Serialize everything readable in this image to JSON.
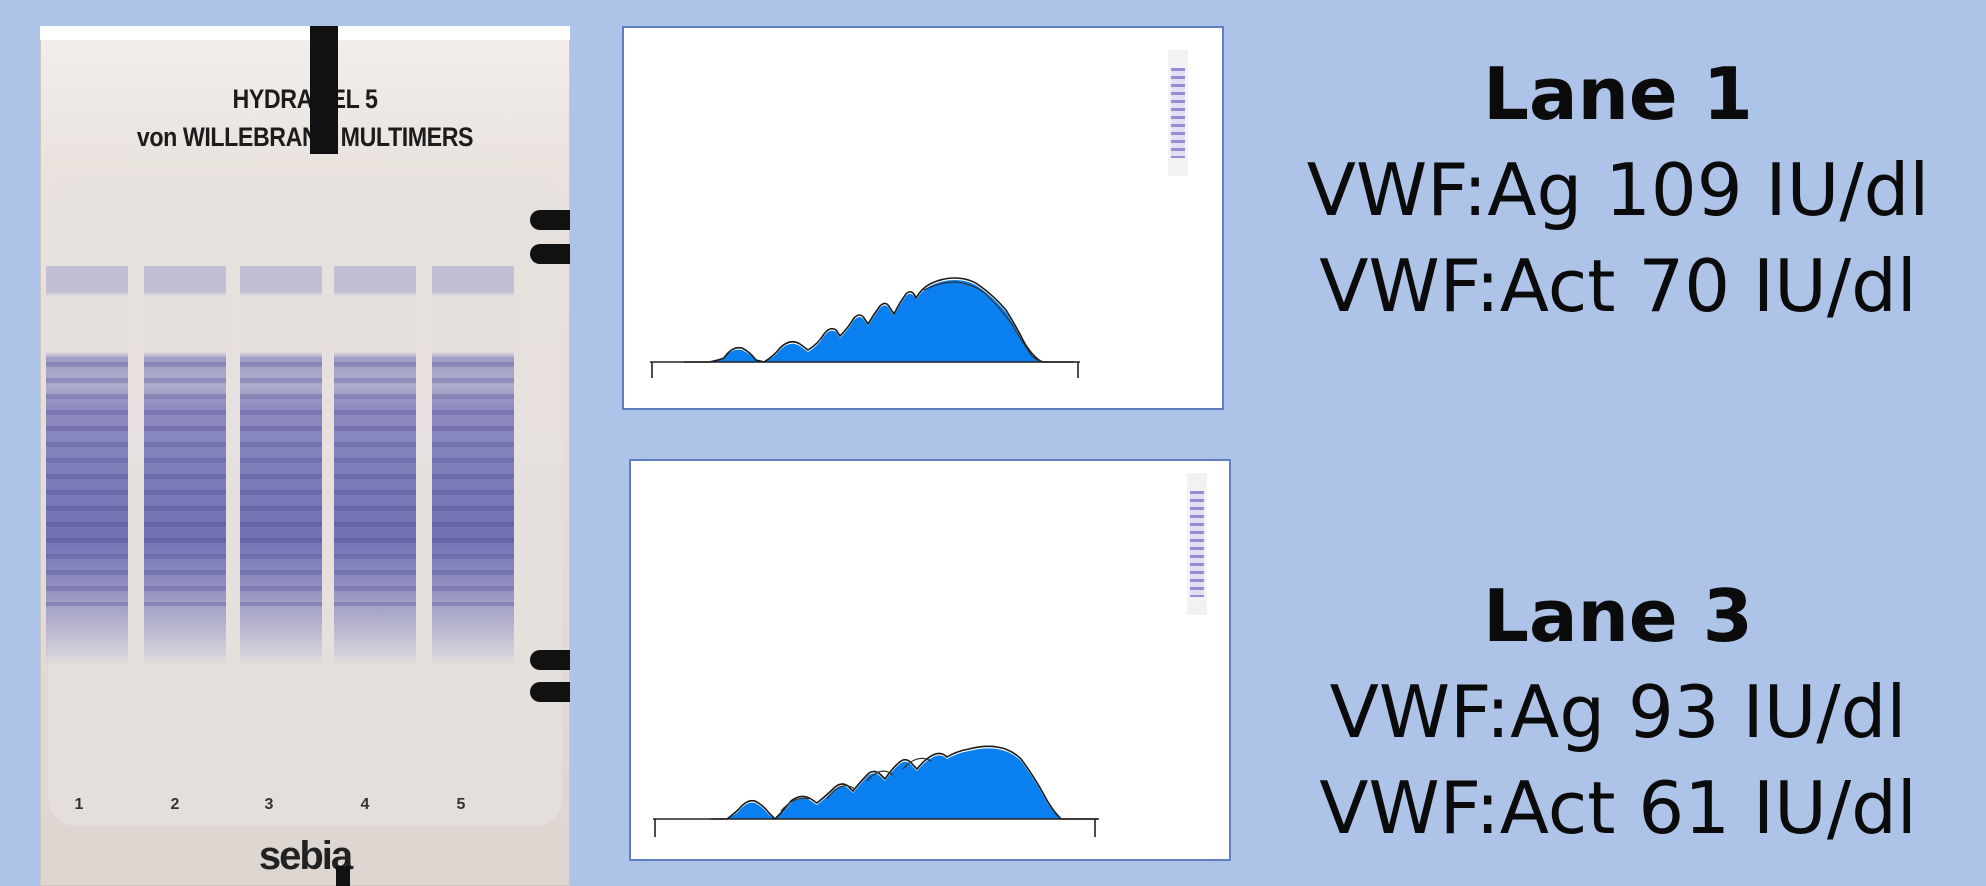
{
  "gel": {
    "title_line1": "HYDRAGEL 5",
    "title_line2": "von WILLEBRAND MULTIMERS",
    "lane_numbers": [
      "1",
      "2",
      "3",
      "4",
      "5"
    ],
    "brand": "sebia"
  },
  "panels": [
    {
      "name": "lane-1-densitogram",
      "fill_color": "#0a80f0"
    },
    {
      "name": "lane-3-densitogram",
      "fill_color": "#0a80f0"
    }
  ],
  "lane1": {
    "heading": "Lane 1",
    "ag": "VWF:Ag 109 IU/dl",
    "act": "VWF:Act 70 IU/dl"
  },
  "lane3": {
    "heading": "Lane 3",
    "ag": "VWF:Ag 93 IU/dl",
    "act": "VWF:Act 61 IU/dl"
  }
}
